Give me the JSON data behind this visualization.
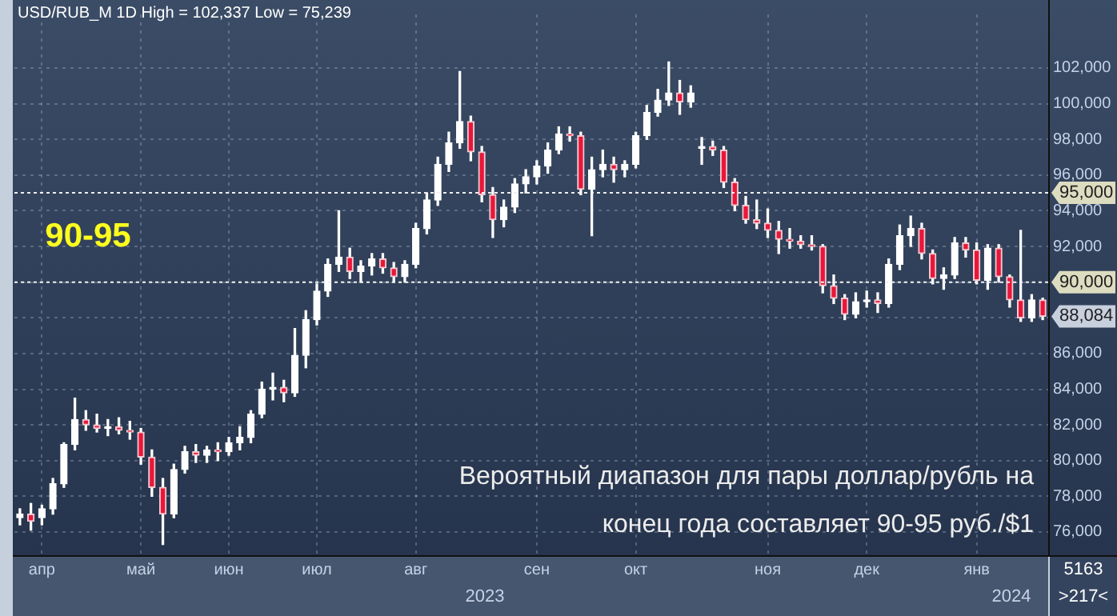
{
  "chart_data": {
    "type": "candlestick",
    "title": "USD/RUB_M 1D High = 102,337 Low = 75,239",
    "annotations": [
      "90-95",
      "Вероятный диапазон для пары доллар/рубль на\nконец года составляет 90-95 руб./$1",
      "5163",
      ">217<",
      "2023",
      "2024",
      "88,084"
    ],
    "categories": [
      null,
      null,
      "апр",
      null,
      null,
      null,
      null,
      null,
      null,
      null,
      null,
      "май",
      null,
      null,
      null,
      null,
      null,
      null,
      null,
      "июн",
      null,
      null,
      null,
      null,
      null,
      null,
      null,
      "июл",
      null,
      null,
      null,
      null,
      null,
      null,
      null,
      null,
      "авг",
      null,
      null,
      null,
      null,
      null,
      null,
      null,
      null,
      null,
      null,
      "сен",
      null,
      null,
      null,
      null,
      null,
      null,
      null,
      null,
      "окт",
      null,
      null,
      null,
      null,
      null,
      null,
      null,
      null,
      null,
      null,
      null,
      "ноя",
      null,
      null,
      null,
      null,
      null,
      null,
      null,
      null,
      "дек",
      null,
      null,
      null,
      null,
      null,
      null,
      null,
      null,
      null,
      "янв",
      null,
      null,
      null,
      null,
      null,
      null
    ],
    "ohlc": [
      [
        76800,
        77300,
        76400,
        77000
      ],
      [
        77000,
        77600,
        76100,
        76600
      ],
      [
        76800,
        77500,
        76400,
        77300
      ],
      [
        77300,
        79000,
        77000,
        78700
      ],
      [
        78700,
        81000,
        78500,
        80900
      ],
      [
        80900,
        83500,
        80600,
        82300
      ],
      [
        82300,
        82800,
        81700,
        82000
      ],
      [
        82000,
        82600,
        81600,
        81800
      ],
      [
        81800,
        82300,
        81400,
        81900
      ],
      [
        81900,
        82400,
        81500,
        81700
      ],
      [
        81700,
        82200,
        81200,
        81600
      ],
      [
        81600,
        81800,
        79800,
        80200
      ],
      [
        80200,
        80600,
        78000,
        78500
      ],
      [
        78500,
        79000,
        75300,
        77000
      ],
      [
        77000,
        79800,
        76800,
        79500
      ],
      [
        79500,
        80800,
        79300,
        80500
      ],
      [
        80500,
        80900,
        79900,
        80300
      ],
      [
        80300,
        80800,
        79900,
        80600
      ],
      [
        80600,
        81000,
        80000,
        80500
      ],
      [
        80500,
        81300,
        80300,
        81000
      ],
      [
        81000,
        81900,
        80600,
        81300
      ],
      [
        81300,
        82800,
        81000,
        82600
      ],
      [
        82600,
        84400,
        82400,
        84000
      ],
      [
        84000,
        84900,
        83400,
        84100
      ],
      [
        84100,
        84500,
        83300,
        83800
      ],
      [
        83800,
        87400,
        83600,
        85900
      ],
      [
        85900,
        88400,
        85200,
        87900
      ],
      [
        87900,
        89900,
        87600,
        89500
      ],
      [
        89500,
        91300,
        89200,
        91000
      ],
      [
        91000,
        94000,
        90600,
        91400
      ],
      [
        91400,
        91900,
        90200,
        90600
      ],
      [
        90600,
        91200,
        90000,
        90900
      ],
      [
        90900,
        91600,
        90400,
        91300
      ],
      [
        91300,
        91600,
        90500,
        90800
      ],
      [
        90800,
        91100,
        90000,
        90300
      ],
      [
        90300,
        91200,
        90000,
        91000
      ],
      [
        91000,
        93300,
        90800,
        93000
      ],
      [
        93000,
        95000,
        92700,
        94600
      ],
      [
        94600,
        97000,
        94300,
        96600
      ],
      [
        96600,
        98400,
        96200,
        97800
      ],
      [
        97800,
        101800,
        97500,
        99000
      ],
      [
        99000,
        99300,
        96800,
        97300
      ],
      [
        97300,
        97600,
        94500,
        94900
      ],
      [
        94900,
        95300,
        92500,
        93500
      ],
      [
        93500,
        94600,
        93100,
        94200
      ],
      [
        94200,
        95800,
        93900,
        95500
      ],
      [
        95500,
        96300,
        95000,
        95900
      ],
      [
        95900,
        96800,
        95500,
        96500
      ],
      [
        96500,
        97800,
        96100,
        97400
      ],
      [
        97400,
        98700,
        97200,
        98300
      ],
      [
        98300,
        98700,
        97900,
        98200
      ],
      [
        98200,
        98400,
        94900,
        95200
      ],
      [
        95200,
        97000,
        92600,
        96300
      ],
      [
        96300,
        97400,
        95900,
        96600
      ],
      [
        96600,
        97000,
        95600,
        96300
      ],
      [
        96300,
        96800,
        95900,
        96600
      ],
      [
        96600,
        98400,
        96400,
        98200
      ],
      [
        98200,
        99900,
        98000,
        99500
      ],
      [
        99500,
        100800,
        99300,
        100200
      ],
      [
        100200,
        102337,
        99900,
        100600
      ],
      [
        100600,
        101300,
        99400,
        100100
      ],
      [
        100100,
        101000,
        99800,
        100600
      ],
      [
        97500,
        98100,
        96600,
        97600
      ],
      [
        97600,
        97900,
        97100,
        97400
      ],
      [
        97400,
        97600,
        95300,
        95600
      ],
      [
        95600,
        95800,
        94000,
        94300
      ],
      [
        94300,
        94800,
        93300,
        93500
      ],
      [
        93500,
        94600,
        93000,
        93300
      ],
      [
        93300,
        94100,
        92500,
        92900
      ],
      [
        92900,
        93400,
        91600,
        92400
      ],
      [
        92400,
        93000,
        91900,
        92300
      ],
      [
        92300,
        92600,
        91900,
        92100
      ],
      [
        92100,
        92600,
        91800,
        92000
      ],
      [
        92000,
        92100,
        89400,
        89800
      ],
      [
        89800,
        90400,
        88800,
        89100
      ],
      [
        89100,
        89300,
        87900,
        88200
      ],
      [
        88200,
        89400,
        88000,
        88900
      ],
      [
        88900,
        89500,
        88600,
        89000
      ],
      [
        89000,
        89400,
        88300,
        88800
      ],
      [
        88800,
        91300,
        88600,
        91000
      ],
      [
        91000,
        93200,
        90700,
        92600
      ],
      [
        92600,
        93700,
        92000,
        93000
      ],
      [
        93000,
        93300,
        91300,
        91600
      ],
      [
        91600,
        91800,
        89900,
        90200
      ],
      [
        90200,
        90800,
        89600,
        90400
      ],
      [
        90400,
        92500,
        90200,
        92200
      ],
      [
        92200,
        92500,
        91400,
        91800
      ],
      [
        91800,
        92200,
        89900,
        90100
      ],
      [
        90100,
        92100,
        89600,
        91900
      ],
      [
        91900,
        92100,
        90000,
        90300
      ],
      [
        90300,
        90400,
        88600,
        89000
      ],
      [
        89000,
        92900,
        87800,
        88000
      ],
      [
        88000,
        89300,
        87800,
        89000
      ],
      [
        89000,
        89100,
        87900,
        88084
      ]
    ],
    "ylim": [
      74700,
      105000
    ],
    "yticks": [
      {
        "value": 76000,
        "label": "76,000"
      },
      {
        "value": 78000,
        "label": "78,000"
      },
      {
        "value": 80000,
        "label": "80,000"
      },
      {
        "value": 82000,
        "label": "82,000"
      },
      {
        "value": 84000,
        "label": "84,000"
      },
      {
        "value": 86000,
        "label": "86,000"
      },
      {
        "value": 88000,
        "label": null
      },
      {
        "value": 90000,
        "label": null
      },
      {
        "value": 92000,
        "label": "92,000"
      },
      {
        "value": 94000,
        "label": "94,000"
      },
      {
        "value": 96000,
        "label": "96,000"
      },
      {
        "value": 98000,
        "label": "98,000"
      },
      {
        "value": 100000,
        "label": "100,000"
      },
      {
        "value": 102000,
        "label": "102,000"
      }
    ],
    "ref_lines": [
      {
        "axis": "y",
        "value": 95000,
        "label": "95,000",
        "color": "#f0f0f0",
        "line_style": "dotted"
      },
      {
        "axis": "y",
        "value": 90000,
        "label": "90,000",
        "color": "#f0f0f0",
        "line_style": "dotted"
      }
    ],
    "grid": true
  }
}
